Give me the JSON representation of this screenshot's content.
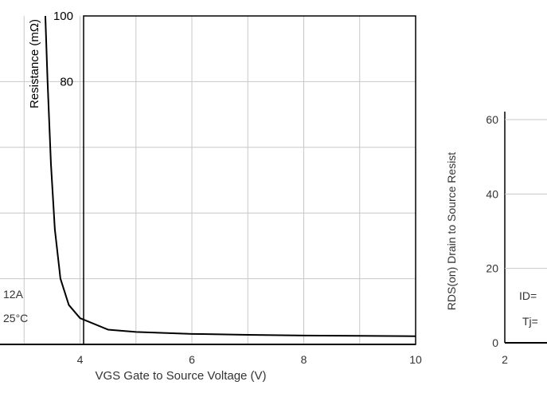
{
  "chart_data": [
    {
      "type": "line",
      "title": "",
      "xlabel": "VGS Gate to Source Voltage (V)",
      "ylabel": "Resistance (mΩ)",
      "xlim": [
        2,
        10
      ],
      "ylim": [
        0,
        100
      ],
      "x_ticks": [
        "4",
        "6",
        "8",
        "10"
      ],
      "y_ticks": [
        "80",
        "100"
      ],
      "grid": true,
      "annotations": [
        "12A",
        "25°C"
      ],
      "series": [
        {
          "x": [
            3.38,
            3.42,
            3.48,
            3.55,
            3.65,
            3.8,
            4.0,
            4.5,
            5.0,
            6.0,
            7.0,
            8.0,
            9.0,
            10.0
          ],
          "y": [
            100,
            80,
            55,
            35,
            20,
            12,
            8,
            4.5,
            3.8,
            3.2,
            2.9,
            2.7,
            2.6,
            2.5
          ]
        }
      ]
    },
    {
      "type": "line",
      "title": "",
      "xlabel": "",
      "ylabel": "RDS(on) Drain to Source Resist",
      "y_ticks": [
        "0",
        "20",
        "40",
        "60"
      ],
      "x_ticks": [
        "2"
      ],
      "annotations": [
        "ID=",
        "Tj="
      ],
      "series": []
    }
  ]
}
